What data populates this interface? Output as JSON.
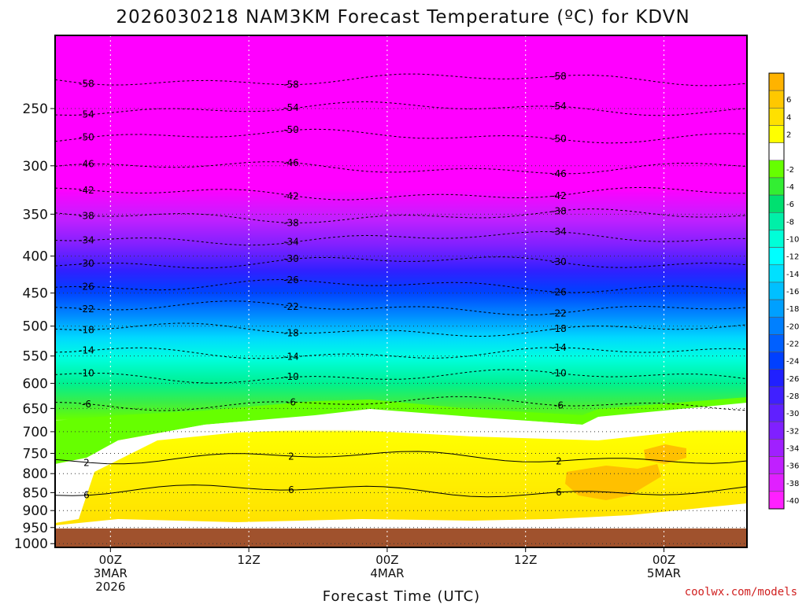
{
  "title": "2026030218 NAM3KM Forecast Temperature (ºC) for KDVN",
  "credit": "coolwx.com/models",
  "chart_data": {
    "type": "contour-filled time-height cross section",
    "title": "2026030218 NAM3KM Forecast Temperature (ºC) for KDVN",
    "xlabel": "Forecast Time (UTC)",
    "ylabel": "",
    "x_range_hours_from_00Z_3MAR": [
      -4.8,
      55.2
    ],
    "y_range_hpa": [
      1012,
      198
    ],
    "y_ticks": [
      {
        "value": 250,
        "label": "250"
      },
      {
        "value": 300,
        "label": "300"
      },
      {
        "value": 350,
        "label": "350"
      },
      {
        "value": 400,
        "label": "400"
      },
      {
        "value": 450,
        "label": "450"
      },
      {
        "value": 500,
        "label": "500"
      },
      {
        "value": 550,
        "label": "550"
      },
      {
        "value": 600,
        "label": "600"
      },
      {
        "value": 650,
        "label": "650"
      },
      {
        "value": 700,
        "label": "700"
      },
      {
        "value": 750,
        "label": "750"
      },
      {
        "value": 800,
        "label": "800"
      },
      {
        "value": 850,
        "label": "850"
      },
      {
        "value": 900,
        "label": "900"
      },
      {
        "value": 950,
        "label": "950"
      },
      {
        "value": 1000,
        "label": "1000"
      }
    ],
    "x_ticks": [
      {
        "hour": 0,
        "lines": [
          "00Z",
          "3MAR",
          "2026"
        ]
      },
      {
        "hour": 12,
        "lines": [
          "12Z"
        ]
      },
      {
        "hour": 24,
        "lines": [
          "00Z",
          "4MAR"
        ]
      },
      {
        "hour": 36,
        "lines": [
          "12Z"
        ]
      },
      {
        "hour": 48,
        "lines": [
          "00Z",
          "5MAR"
        ]
      }
    ],
    "colorbar": [
      {
        "label": "",
        "color": "#ffb300"
      },
      {
        "label": "6",
        "color": "#ffc800"
      },
      {
        "label": "4",
        "color": "#ffe000"
      },
      {
        "label": "2",
        "color": "#ffff00"
      },
      {
        "label": "",
        "color": "#ffffff"
      },
      {
        "label": "-2",
        "color": "#66ff00"
      },
      {
        "label": "-4",
        "color": "#33ee33"
      },
      {
        "label": "-6",
        "color": "#00e070"
      },
      {
        "label": "-8",
        "color": "#00f0a8"
      },
      {
        "label": "-10",
        "color": "#00ffd8"
      },
      {
        "label": "-12",
        "color": "#00ffff"
      },
      {
        "label": "-14",
        "color": "#00e0ff"
      },
      {
        "label": "-16",
        "color": "#00c0ff"
      },
      {
        "label": "-18",
        "color": "#00a0ff"
      },
      {
        "label": "-20",
        "color": "#0080ff"
      },
      {
        "label": "-22",
        "color": "#0060ff"
      },
      {
        "label": "-24",
        "color": "#0040ff"
      },
      {
        "label": "-26",
        "color": "#2020ff"
      },
      {
        "label": "-28",
        "color": "#4020ff"
      },
      {
        "label": "-30",
        "color": "#6020ff"
      },
      {
        "label": "-32",
        "color": "#8020ff"
      },
      {
        "label": "-34",
        "color": "#a020ff"
      },
      {
        "label": "-36",
        "color": "#c020ff"
      },
      {
        "label": "-38",
        "color": "#e020ff"
      },
      {
        "label": "-40",
        "color": "#ff20ff"
      }
    ],
    "isotherms_approx_hpa": [
      {
        "temp": -58,
        "label": "-58",
        "pressure_hpa": 228
      },
      {
        "temp": -54,
        "label": "-54",
        "pressure_hpa": 250
      },
      {
        "temp": -50,
        "label": "-50",
        "pressure_hpa": 273
      },
      {
        "temp": -46,
        "label": "-46",
        "pressure_hpa": 302
      },
      {
        "temp": -42,
        "label": "-42",
        "pressure_hpa": 328
      },
      {
        "temp": -38,
        "label": "-38",
        "pressure_hpa": 352
      },
      {
        "temp": -34,
        "label": "-34",
        "pressure_hpa": 378
      },
      {
        "temp": -30,
        "label": "-30",
        "pressure_hpa": 408
      },
      {
        "temp": -26,
        "label": "-26",
        "pressure_hpa": 440
      },
      {
        "temp": -22,
        "label": "-22",
        "pressure_hpa": 472
      },
      {
        "temp": -18,
        "label": "-18",
        "pressure_hpa": 506
      },
      {
        "temp": -14,
        "label": "-14",
        "pressure_hpa": 545
      },
      {
        "temp": -10,
        "label": "-10",
        "pressure_hpa": 587
      },
      {
        "temp": -6,
        "label": "-6",
        "pressure_hpa": 640
      },
      {
        "temp": 2,
        "label": "2",
        "pressure_hpa": 760
      },
      {
        "temp": 6,
        "label": "6",
        "pressure_hpa": 845
      }
    ],
    "ground_below_hpa": 995
  }
}
